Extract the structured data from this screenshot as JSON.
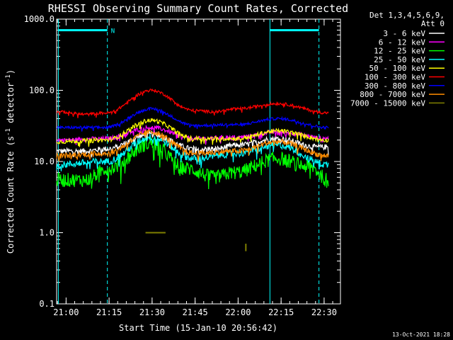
{
  "chart_data": {
    "type": "line",
    "title": "RHESSI Observing Summary Count Rates, Corrected",
    "xlabel": "Start Time (15-Jan-10 20:56:42)",
    "ylabel": "Corrected Count Rate (s-1 detector-1)",
    "ylabel_parts": {
      "base": "Corrected Count Rate (s",
      "sup1": "-1",
      "mid": " detector",
      "sup2": "-1",
      "end": ")"
    },
    "y_scale": "log",
    "ylim": [
      0.1,
      1000.0
    ],
    "y_ticks": [
      {
        "value": 0.1,
        "label": "0.1"
      },
      {
        "value": 1.0,
        "label": "1.0"
      },
      {
        "value": 10.0,
        "label": "10.0"
      },
      {
        "value": 100.0,
        "label": "100.0"
      },
      {
        "value": 1000.0,
        "label": "1000.0"
      }
    ],
    "xlim_minutes": [
      0,
      99
    ],
    "x_ticks": [
      {
        "min": 3.3,
        "label": "21:00"
      },
      {
        "min": 18.3,
        "label": "21:15"
      },
      {
        "min": 33.3,
        "label": "21:30"
      },
      {
        "min": 48.3,
        "label": "21:45"
      },
      {
        "min": 63.3,
        "label": "22:00"
      },
      {
        "min": 78.3,
        "label": "22:15"
      },
      {
        "min": 93.3,
        "label": "22:30"
      }
    ],
    "legend_header": [
      "Det 1,3,4,5,6,9,",
      "Att 0"
    ],
    "legend_position": "top-right",
    "series": [
      {
        "name": "3 - 6 keV",
        "color": "#ffffff",
        "anchors": [
          [
            0,
            14
          ],
          [
            10,
            14
          ],
          [
            17,
            15
          ],
          [
            33,
            24
          ],
          [
            48,
            15
          ],
          [
            55,
            15
          ],
          [
            63,
            17
          ],
          [
            77,
            21
          ],
          [
            91,
            16
          ],
          [
            95,
            16
          ]
        ],
        "noise": 0.04
      },
      {
        "name": "6 - 12 keV",
        "color": "#ff00ff",
        "anchors": [
          [
            0,
            20
          ],
          [
            17,
            21
          ],
          [
            33,
            30
          ],
          [
            48,
            21
          ],
          [
            63,
            22
          ],
          [
            77,
            26
          ],
          [
            95,
            21
          ]
        ],
        "noise": 0.03
      },
      {
        "name": "12 - 25 keV",
        "color": "#00ff00",
        "anchors": [
          [
            0,
            5.5
          ],
          [
            10,
            5.5
          ],
          [
            18,
            8
          ],
          [
            33,
            18
          ],
          [
            45,
            8
          ],
          [
            55,
            6
          ],
          [
            62,
            7
          ],
          [
            77,
            11
          ],
          [
            88,
            8.5
          ],
          [
            95,
            5.5
          ]
        ],
        "noise": 0.1
      },
      {
        "name": "25 - 50 keV",
        "color": "#00ffff",
        "anchors": [
          [
            0,
            9
          ],
          [
            17,
            10
          ],
          [
            33,
            22
          ],
          [
            48,
            11
          ],
          [
            63,
            13
          ],
          [
            77,
            17
          ],
          [
            95,
            9
          ]
        ],
        "noise": 0.05
      },
      {
        "name": "50 - 100 keV",
        "color": "#ffff00",
        "anchors": [
          [
            0,
            19
          ],
          [
            17,
            20
          ],
          [
            33,
            38
          ],
          [
            48,
            21
          ],
          [
            63,
            21
          ],
          [
            77,
            27
          ],
          [
            95,
            20
          ]
        ],
        "noise": 0.03
      },
      {
        "name": "100 - 300 keV",
        "color": "#ff0000",
        "anchors": [
          [
            0,
            50
          ],
          [
            10,
            46
          ],
          [
            17,
            48
          ],
          [
            33,
            100
          ],
          [
            48,
            52
          ],
          [
            55,
            50
          ],
          [
            63,
            55
          ],
          [
            77,
            65
          ],
          [
            95,
            48
          ]
        ],
        "noise": 0.02
      },
      {
        "name": "300 - 800 keV",
        "color": "#0000ff",
        "anchors": [
          [
            0,
            30
          ],
          [
            17,
            30
          ],
          [
            33,
            55
          ],
          [
            48,
            32
          ],
          [
            63,
            33
          ],
          [
            77,
            40
          ],
          [
            95,
            30
          ]
        ],
        "noise": 0.02
      },
      {
        "name": "800 - 7000 keV",
        "color": "#ff8c00",
        "anchors": [
          [
            0,
            12
          ],
          [
            17,
            13
          ],
          [
            33,
            26
          ],
          [
            48,
            13
          ],
          [
            63,
            14
          ],
          [
            77,
            19
          ],
          [
            95,
            12
          ]
        ],
        "noise": 0.04
      },
      {
        "name": "7000 - 15000 keV",
        "color": "#808000",
        "anchors": [],
        "segments": [
          [
            [
              31,
              1.0
            ],
            [
              38,
              1.0
            ]
          ],
          [
            [
              66,
              0.55
            ],
            [
              66,
              0.7
            ]
          ]
        ],
        "noise": 0
      }
    ],
    "markers": {
      "vertical_lines_min": [
        {
          "min": 0.6,
          "style": "solid"
        },
        {
          "min": 17.7,
          "style": "dashed"
        },
        {
          "min": 74.4,
          "style": "solid"
        },
        {
          "min": 91.5,
          "style": "dashed"
        }
      ],
      "top_bars": [
        {
          "from": 0.6,
          "to": 17.7,
          "label": "N"
        },
        {
          "from": 74.4,
          "to": 91.5,
          "label": ""
        }
      ],
      "color": "#00ffff"
    },
    "timestamp": "13-Oct-2021 18:28"
  }
}
